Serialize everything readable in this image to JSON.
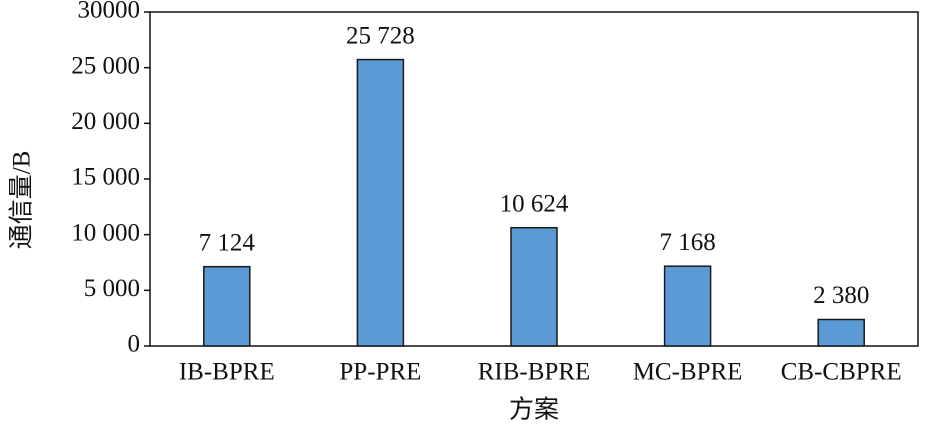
{
  "chart_data": {
    "type": "bar",
    "x_label": "方案",
    "y_label": "通信量/B",
    "categories": [
      "IB-BPRE",
      "PP-PRE",
      "RIB-BPRE",
      "MC-BPRE",
      "CB-CBPRE"
    ],
    "values": [
      7124,
      25728,
      10624,
      7168,
      2380
    ],
    "value_labels": [
      "7 124",
      "25 728",
      "10 624",
      "7 168",
      "2 380"
    ],
    "color": "#5b9bd5",
    "ylim": [
      0,
      30000
    ],
    "yticks": [
      {
        "value": 0,
        "label": "0"
      },
      {
        "value": 5000,
        "label": "5 000"
      },
      {
        "value": 10000,
        "label": "10 000"
      },
      {
        "value": 15000,
        "label": "15 000"
      },
      {
        "value": 20000,
        "label": "20 000"
      },
      {
        "value": 25000,
        "label": "25 000"
      },
      {
        "value": 30000,
        "label": "30000"
      }
    ]
  }
}
